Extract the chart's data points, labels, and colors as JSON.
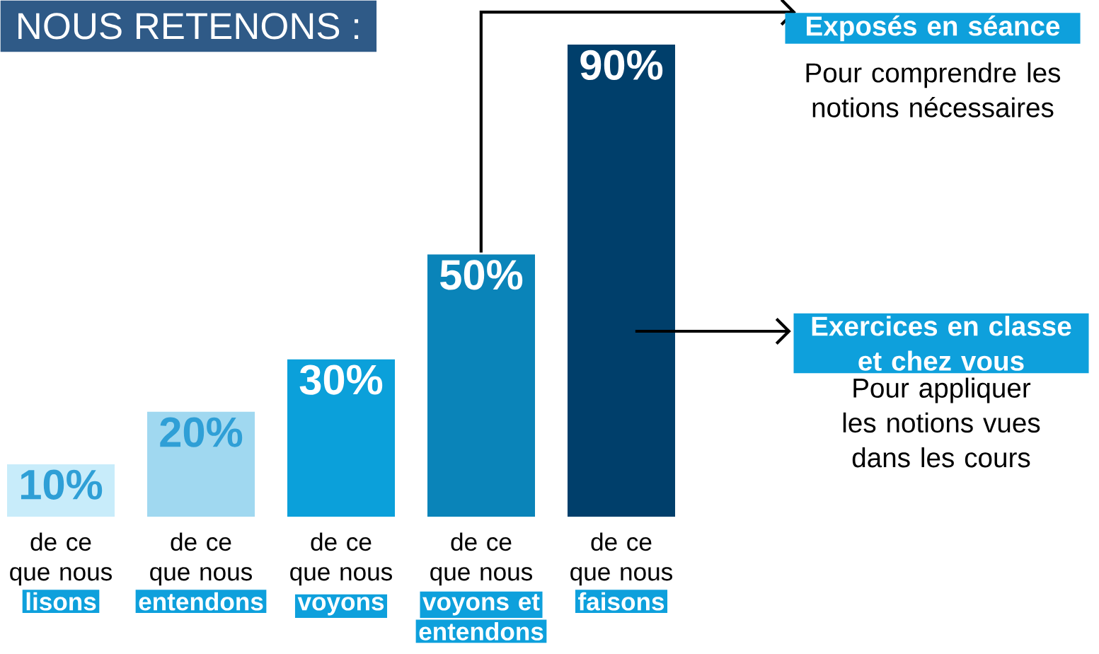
{
  "chart_data": {
    "type": "bar",
    "title": "NOUS RETENONS :",
    "categories": [
      "de ce que nous **lisons**",
      "de ce que nous **entendons**",
      "de ce que nous **voyons**",
      "de ce que nous **voyons et** **entendons**",
      "de ce que nous **faisons**"
    ],
    "values": [
      10,
      20,
      30,
      50,
      90
    ],
    "colors": [
      "#c8ecfa",
      "#a0d8f0",
      "#0ba0da",
      "#0a84b9",
      "#003f6b"
    ],
    "value_labels": [
      "10%",
      "20%",
      "30%",
      "50%",
      "90%"
    ],
    "annotations": [
      "Exposés en séance",
      "Pour comprendre les notions nécessaires",
      "Exercices en classe et chez vous",
      "Pour appliquer les notions vues dans les cours"
    ]
  }
}
